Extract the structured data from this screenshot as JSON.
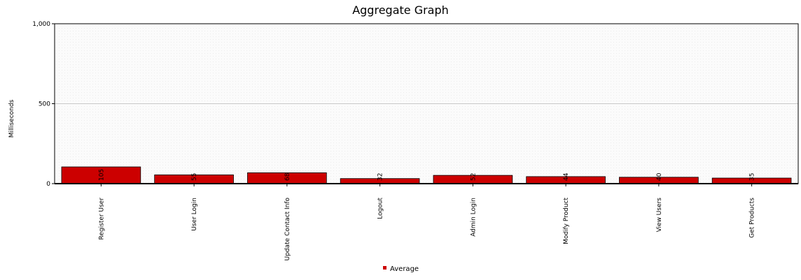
{
  "chart_data": {
    "type": "bar",
    "title": "Aggregate Graph",
    "xlabel": "",
    "ylabel": "Milliseconds",
    "ylim": [
      0,
      1000
    ],
    "yticks": [
      "0",
      "500",
      "1,000"
    ],
    "ytick_values": [
      0,
      500,
      1000
    ],
    "grid": true,
    "legend_position": "bottom",
    "bar_color": "#cc0000",
    "categories": [
      "Register User",
      "User Login",
      "Update Contact Info",
      "Logout",
      "Admin Login",
      "Modify Product",
      "View Users",
      "Get Products"
    ],
    "series": [
      {
        "name": "Average",
        "values": [
          105,
          55,
          68,
          32,
          52,
          44,
          40,
          35
        ]
      }
    ]
  }
}
